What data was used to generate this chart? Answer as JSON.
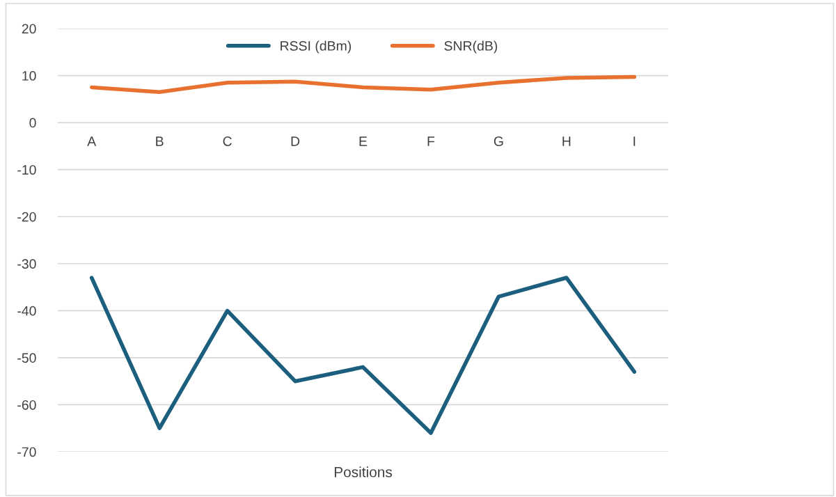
{
  "chart_data": {
    "type": "line",
    "xlabel": "Positions",
    "categories": [
      "A",
      "B",
      "C",
      "D",
      "E",
      "F",
      "G",
      "H",
      "I"
    ],
    "series": [
      {
        "name": "RSSI (dBm)",
        "color": "#1b5e7e",
        "values": [
          -33,
          -65,
          -40,
          -55,
          -52,
          -66,
          -37,
          -33,
          -53
        ]
      },
      {
        "name": "SNR(dB)",
        "color": "#e8712f",
        "values": [
          7.5,
          6.5,
          8.5,
          8.7,
          7.5,
          7,
          8.5,
          9.5,
          9.7
        ]
      }
    ],
    "ylim": [
      -70,
      20
    ],
    "yticks": [
      -70,
      -60,
      -50,
      -40,
      -30,
      -20,
      -10,
      0,
      10,
      20
    ],
    "grid": "y",
    "legend": "top",
    "marker": "none",
    "line_style": "solid"
  }
}
